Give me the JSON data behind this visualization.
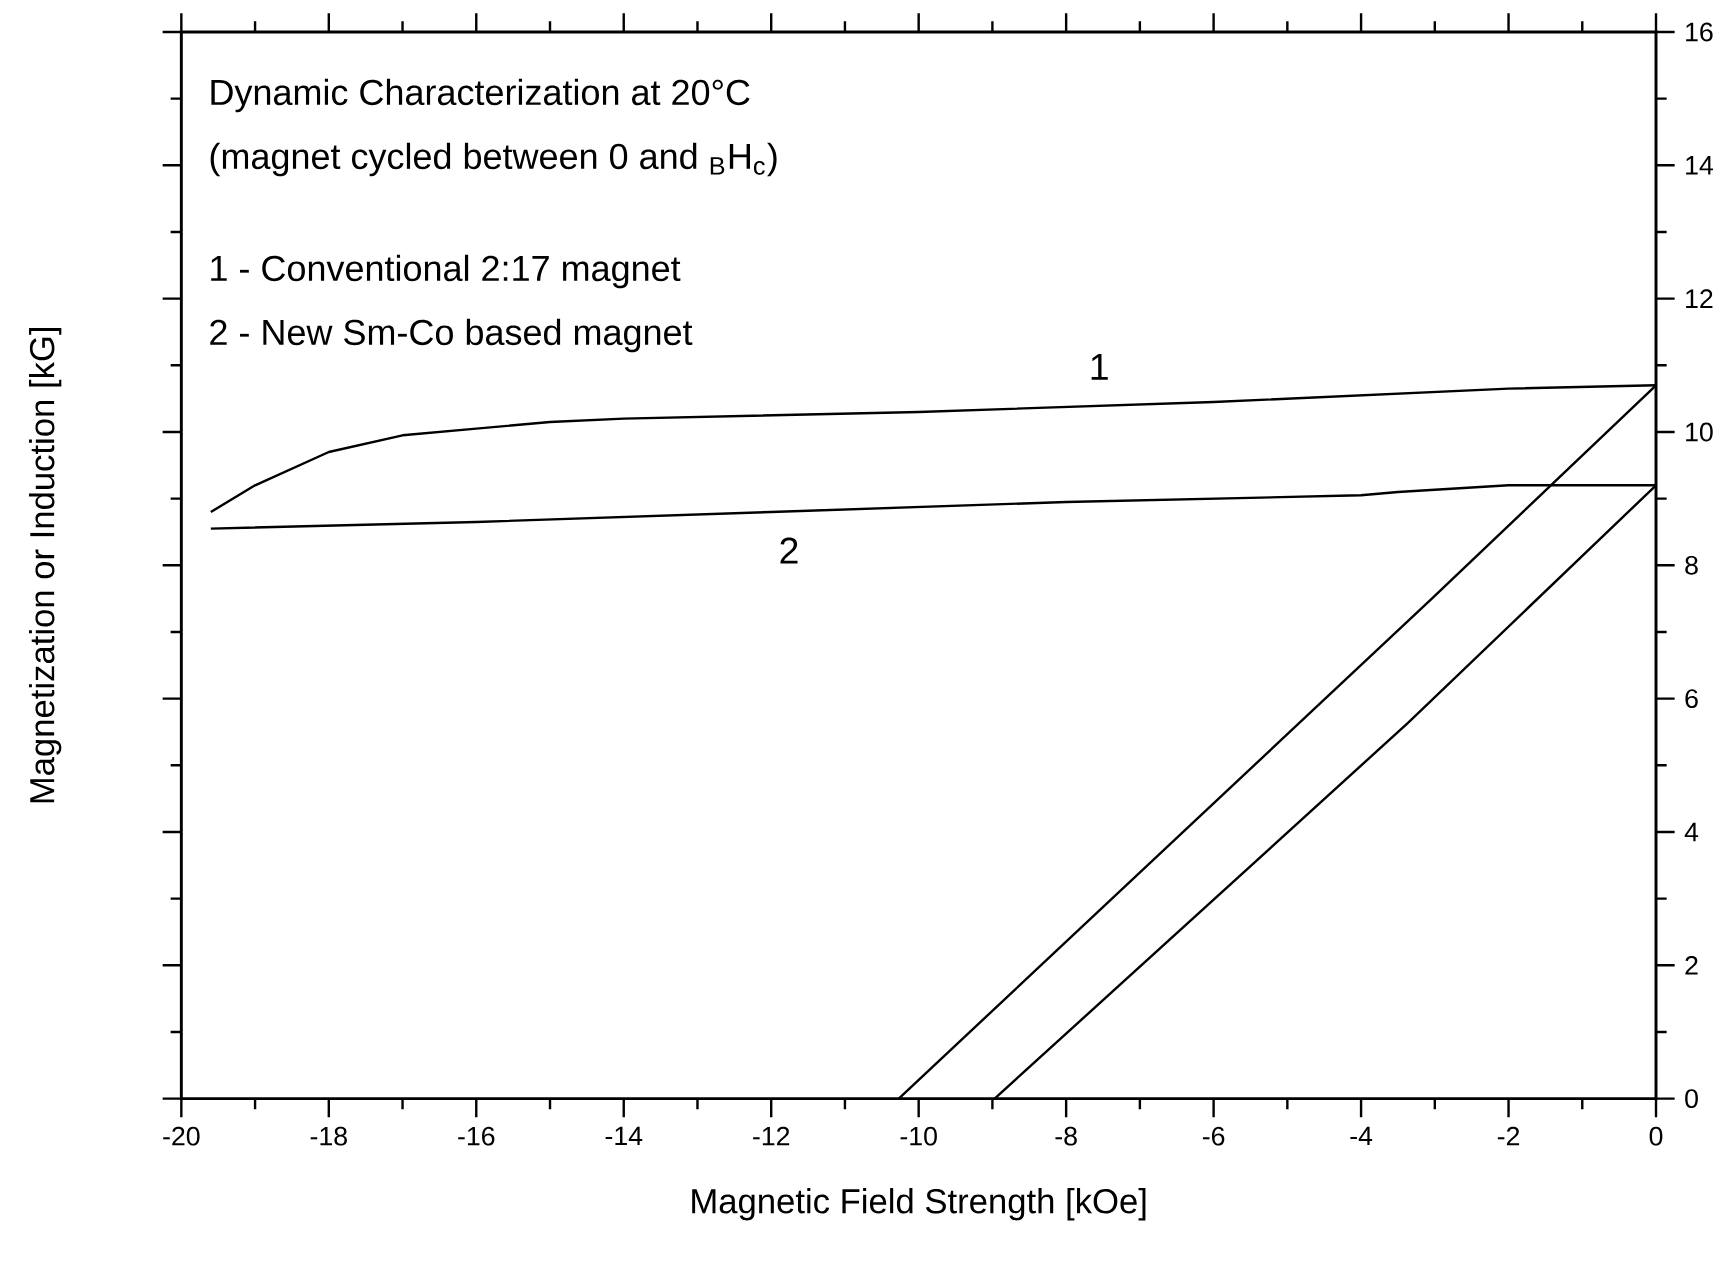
{
  "chart_data": {
    "type": "line",
    "xlabel": "Magnetic Field Strength [kOe]",
    "ylabel": "Magnetization or Induction [kG]",
    "annotations": [
      "Dynamic Characterization at 20°C",
      "(magnet cycled between 0 and $_{B}$H$_{c}$)",
      "1 - Conventional 2:17 magnet",
      "2 - New Sm-Co based magnet",
      "1",
      "2"
    ],
    "series": [
      {
        "color": "#000000",
        "x": [
          -19.6,
          -19,
          -18,
          -17,
          -16,
          -15,
          -14,
          -10,
          -6,
          -2,
          0
        ],
        "values": [
          8.8,
          9.2,
          9.7,
          9.95,
          10.05,
          10.15,
          10.2,
          10.3,
          10.45,
          10.65,
          10.7
        ]
      },
      {
        "color": "#000000",
        "x": [
          -19.6,
          -16,
          -12,
          -8,
          -4,
          -3.5,
          -2,
          0
        ],
        "values": [
          8.55,
          8.65,
          8.8,
          8.95,
          9.05,
          9.1,
          9.2,
          9.2
        ]
      },
      {
        "color": "#000000",
        "x": [
          -10.27,
          -3.04,
          0
        ],
        "values": [
          0,
          7.5,
          10.7
        ]
      },
      {
        "color": "#000000",
        "x": [
          -8.97,
          -3.36,
          0
        ],
        "values": [
          0,
          5.64,
          9.2
        ]
      }
    ],
    "xlim": [
      -20,
      0
    ],
    "ylim": [
      0,
      16
    ],
    "xticks": [
      -20,
      -18,
      -16,
      -14,
      -12,
      -10,
      -8,
      -6,
      -4,
      -2,
      0
    ],
    "yticks": [
      0,
      2,
      4,
      6,
      8,
      10,
      12,
      14,
      16
    ]
  }
}
